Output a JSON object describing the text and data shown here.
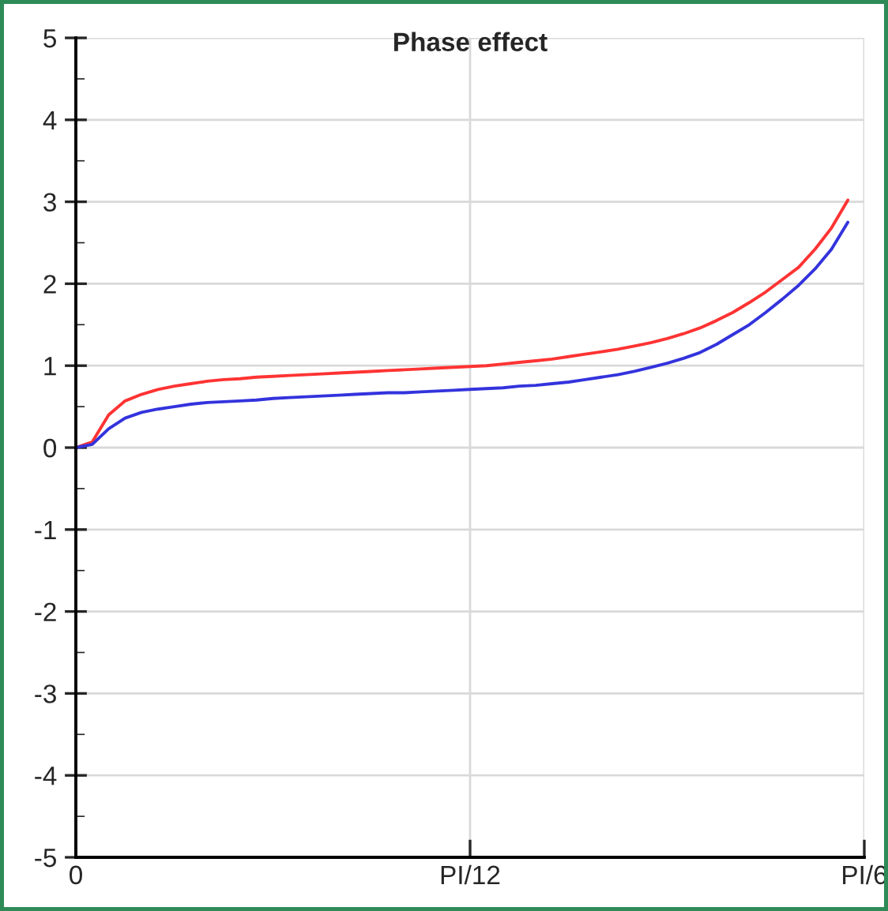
{
  "chart_data": {
    "type": "line",
    "title": "Phase effect",
    "categories": [
      "0",
      null,
      null,
      null,
      null,
      null,
      null,
      null,
      null,
      null,
      null,
      null,
      null,
      null,
      null,
      null,
      null,
      null,
      null,
      null,
      null,
      null,
      null,
      null,
      "PI/12",
      null,
      null,
      null,
      null,
      null,
      null,
      null,
      null,
      null,
      null,
      null,
      null,
      null,
      null,
      null,
      null,
      null,
      null,
      null,
      null,
      null,
      null,
      null,
      "PI/6"
    ],
    "series": [
      {
        "color": "#ff3333",
        "values": [
          0,
          0.07,
          0.4,
          0.57,
          0.65,
          0.71,
          0.75,
          0.78,
          0.81,
          0.83,
          0.84,
          0.86,
          0.87,
          0.88,
          0.89,
          0.9,
          0.91,
          0.92,
          0.93,
          0.94,
          0.95,
          0.96,
          0.97,
          0.98,
          0.99,
          1.0,
          1.02,
          1.04,
          1.06,
          1.08,
          1.11,
          1.14,
          1.17,
          1.2,
          1.24,
          1.28,
          1.33,
          1.39,
          1.46,
          1.55,
          1.65,
          1.77,
          1.9,
          2.05,
          2.2,
          2.42,
          2.68,
          3.02,
          null
        ]
      },
      {
        "color": "#3333dd",
        "values": [
          0,
          0.04,
          0.23,
          0.36,
          0.43,
          0.47,
          0.5,
          0.53,
          0.55,
          0.56,
          0.57,
          0.58,
          0.6,
          0.61,
          0.62,
          0.63,
          0.64,
          0.65,
          0.66,
          0.67,
          0.67,
          0.68,
          0.69,
          0.7,
          0.71,
          0.72,
          0.73,
          0.75,
          0.76,
          0.78,
          0.8,
          0.83,
          0.86,
          0.89,
          0.93,
          0.98,
          1.03,
          1.09,
          1.16,
          1.26,
          1.38,
          1.5,
          1.65,
          1.81,
          1.98,
          2.18,
          2.42,
          2.75,
          null
        ]
      }
    ],
    "ylim": [
      -5,
      5
    ],
    "yticks": [
      -5,
      -4,
      -3,
      -2,
      -1,
      0,
      1,
      2,
      3,
      4,
      5
    ],
    "grid": true,
    "marker": "none",
    "line_style": "solid"
  }
}
